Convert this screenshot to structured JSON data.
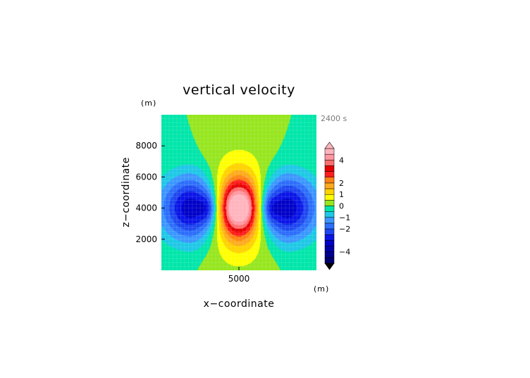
{
  "chart_data": {
    "type": "heatmap",
    "title": "vertical velocity",
    "xlabel": "x−coordinate",
    "ylabel": "z−coordinate",
    "x_unit": "(m)",
    "y_unit": "(m)",
    "time_label": "2400 s",
    "xlim": [
      0,
      10000
    ],
    "ylim": [
      0,
      10000
    ],
    "x_ticks": [
      {
        "value": 5000,
        "label": "5000"
      }
    ],
    "y_ticks": [
      {
        "value": 2000,
        "label": "2000"
      },
      {
        "value": 4000,
        "label": "4000"
      },
      {
        "value": 6000,
        "label": "6000"
      },
      {
        "value": 8000,
        "label": "8000"
      }
    ],
    "grid": true,
    "colorbar": {
      "placement": "right",
      "levels": [
        -5,
        -4.5,
        -4,
        -3.5,
        -3,
        -2.5,
        -2,
        -1.5,
        -1,
        -0.5,
        0,
        0.5,
        1,
        1.5,
        2,
        2.5,
        3,
        3.5,
        4,
        4.5,
        5
      ],
      "colors": [
        "#00006e",
        "#00008c",
        "#0000a8",
        "#0000c8",
        "#0a14e6",
        "#1e46f0",
        "#2d6efa",
        "#3c96ff",
        "#1ec8e6",
        "#00e6aa",
        "#96e61e",
        "#ffff00",
        "#ffd200",
        "#ffaa1e",
        "#ff8214",
        "#ff1e1e",
        "#e60000",
        "#ff6e6e",
        "#ff96a0",
        "#ffb4be"
      ],
      "over_color": "#ffb4be",
      "under_color": "#000000",
      "tick_labels": [
        {
          "value": 4,
          "label": "4"
        },
        {
          "value": 2,
          "label": "2"
        },
        {
          "value": 1,
          "label": "1"
        },
        {
          "value": 0,
          "label": "0"
        },
        {
          "value": -1,
          "label": "−1"
        },
        {
          "value": -2,
          "label": "−2"
        },
        {
          "value": -4,
          "label": "−4"
        }
      ]
    },
    "field": {
      "description_of_structure": "central updraft with lateral downdrafts",
      "updraft": {
        "x": 5000,
        "z": 4000,
        "peak": 5.2,
        "sigma_x": 1100,
        "sigma_z": 1500,
        "lobe_offset_x": 450,
        "lobe_width_x": 400,
        "lobe_width_z": 800,
        "lobe_peak": 0.9
      },
      "downdrafts": [
        {
          "x": 2000,
          "z": 4000,
          "peak": -3.4,
          "sigma_x": 1450,
          "sigma_z": 1450
        },
        {
          "x": 8000,
          "z": 4000,
          "peak": -3.4,
          "sigma_x": 1450,
          "sigma_z": 1450
        }
      ],
      "inner_downdrafts": [
        {
          "x": 3000,
          "z": 4000,
          "peak": -1.2,
          "sigma_x": 380,
          "sigma_z": 700
        },
        {
          "x": 7000,
          "z": 4000,
          "peak": -1.2,
          "sigma_x": 380,
          "sigma_z": 700
        }
      ],
      "background_band": {
        "half_width_x": 2500,
        "value": 0.3
      }
    }
  }
}
